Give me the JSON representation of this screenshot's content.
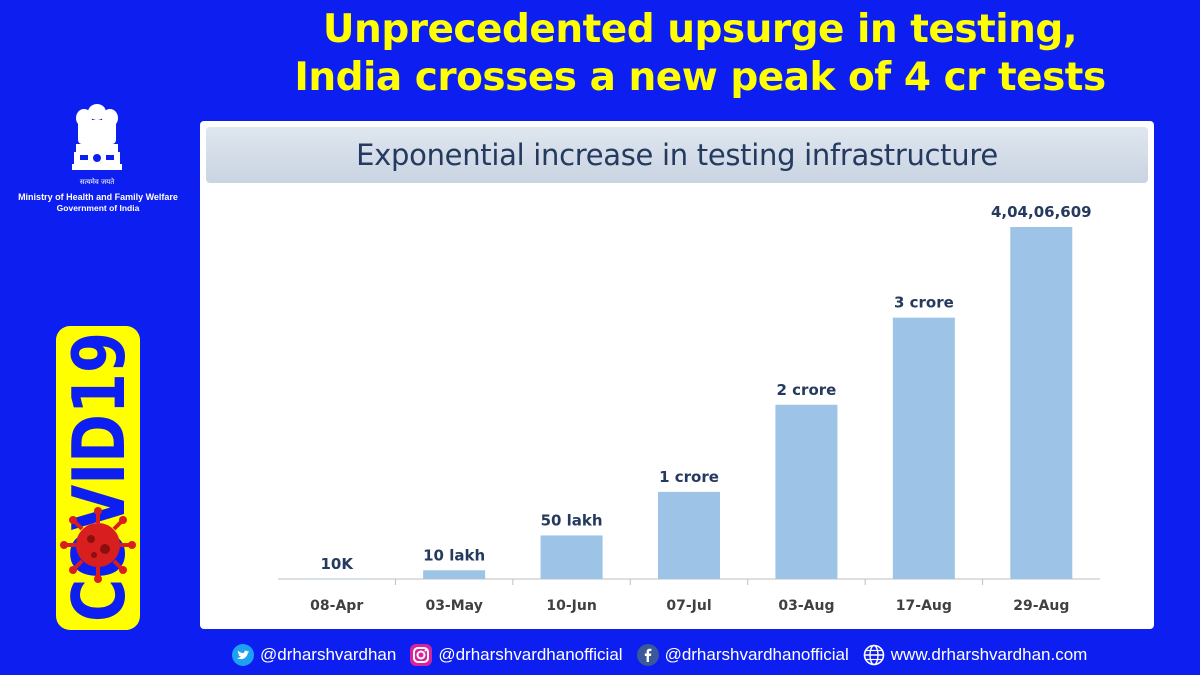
{
  "header": {
    "line1": "Unprecedented upsurge in testing,",
    "line2": "India crosses a new peak of 4 cr tests"
  },
  "ministry": {
    "motto": "सत्यमेव जयते",
    "name": "Ministry of Health and Family Welfare",
    "gov": "Government of India"
  },
  "badge": {
    "text": "COVID19"
  },
  "footer": {
    "twitter": "@drharshvardhan",
    "instagram": "@drharshvardhanofficial",
    "facebook": "@drharshvardhanofficial",
    "website": "www.drharshvardhan.com"
  },
  "colors": {
    "background": "#0d1ff0",
    "headline": "#ffff00",
    "bar": "#9dc3e6",
    "label": "#243a5e"
  },
  "chart_data": {
    "type": "bar",
    "title": "Exponential increase in testing infrastructure",
    "categories": [
      "08-Apr",
      "03-May",
      "10-Jun",
      "07-Jul",
      "03-Aug",
      "17-Aug",
      "29-Aug"
    ],
    "values": [
      10000,
      1000000,
      5000000,
      10000000,
      20000000,
      30000000,
      40406609
    ],
    "data_labels": [
      "10K",
      "10 lakh",
      "50 lakh",
      "1 crore",
      "2 crore",
      "3 crore",
      "4,04,06,609"
    ],
    "xlabel": "",
    "ylabel": "",
    "ylim": [
      0,
      40406609
    ],
    "grid": false
  }
}
